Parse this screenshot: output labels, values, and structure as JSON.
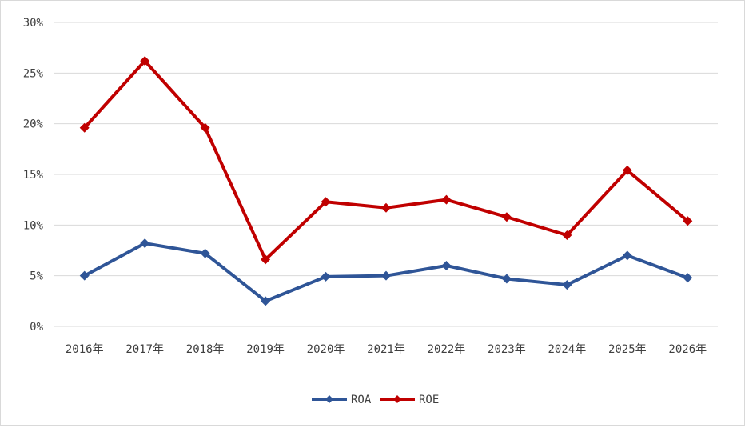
{
  "chart_data": {
    "type": "line",
    "title": "",
    "xlabel": "",
    "ylabel": "",
    "categories": [
      "2016年",
      "2017年",
      "2018年",
      "2019年",
      "2020年",
      "2021年",
      "2022年",
      "2023年",
      "2024年",
      "2025年",
      "2026年"
    ],
    "y_ticks": [
      "0%",
      "5%",
      "10%",
      "15%",
      "20%",
      "25%",
      "30%"
    ],
    "ylim": [
      0,
      30
    ],
    "grid": true,
    "legend_position": "bottom",
    "series": [
      {
        "name": "ROA",
        "color": "#2f5597",
        "marker": "diamond",
        "values": [
          5.0,
          8.2,
          7.2,
          2.5,
          4.9,
          5.0,
          6.0,
          4.7,
          4.1,
          7.0,
          4.8
        ]
      },
      {
        "name": "ROE",
        "color": "#c00000",
        "marker": "diamond",
        "values": [
          19.6,
          26.2,
          19.6,
          6.6,
          12.3,
          11.7,
          12.5,
          10.8,
          9.0,
          15.4,
          10.4
        ]
      }
    ]
  }
}
